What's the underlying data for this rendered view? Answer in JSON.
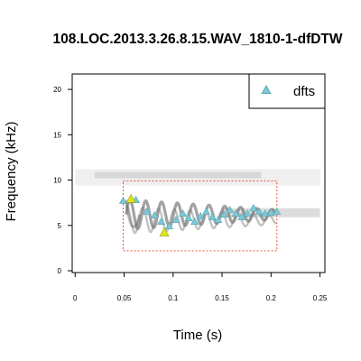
{
  "chart_data": {
    "type": "scatter",
    "title": "108.LOC.2013.3.26.8.15.WAV_1810-1-dfDTW",
    "xlabel": "Time (s)",
    "ylabel": "Frequency (kHz)",
    "xlim": [
      -0.003,
      0.255
    ],
    "ylim": [
      -0.2,
      21.7
    ],
    "xticks": [
      "0",
      "0.05",
      "0.1",
      "0.15",
      "0.2",
      "0.25"
    ],
    "yticks": [
      "0",
      "5",
      "10",
      "15",
      "20"
    ],
    "grid": false,
    "legend": {
      "position": "top-right",
      "entries": [
        "dfts"
      ]
    },
    "selection_box": {
      "x": [
        0.049,
        0.206
      ],
      "y": [
        2.2,
        9.9
      ],
      "color": "#e8402a"
    },
    "series": [
      {
        "name": "dfts",
        "marker": "triangle",
        "color": "#7ec8d6",
        "x": [
          0.049,
          0.062,
          0.073,
          0.081,
          0.088,
          0.096,
          0.103,
          0.11,
          0.116,
          0.122,
          0.128,
          0.134,
          0.14,
          0.146,
          0.152,
          0.158,
          0.164,
          0.17,
          0.176,
          0.182,
          0.188,
          0.194,
          0.2,
          0.206
        ],
        "y": [
          7.7,
          7.8,
          6.5,
          6.1,
          5.4,
          4.9,
          5.6,
          6.3,
          5.8,
          5.4,
          6.0,
          6.5,
          5.9,
          5.6,
          6.2,
          6.7,
          6.3,
          5.9,
          6.3,
          6.9,
          6.5,
          6.3,
          6.4,
          6.5
        ]
      },
      {
        "name": "",
        "marker": "triangle",
        "color": "#e6e617",
        "x": [
          0.057,
          0.091
        ],
        "y": [
          7.9,
          4.2
        ]
      }
    ]
  }
}
